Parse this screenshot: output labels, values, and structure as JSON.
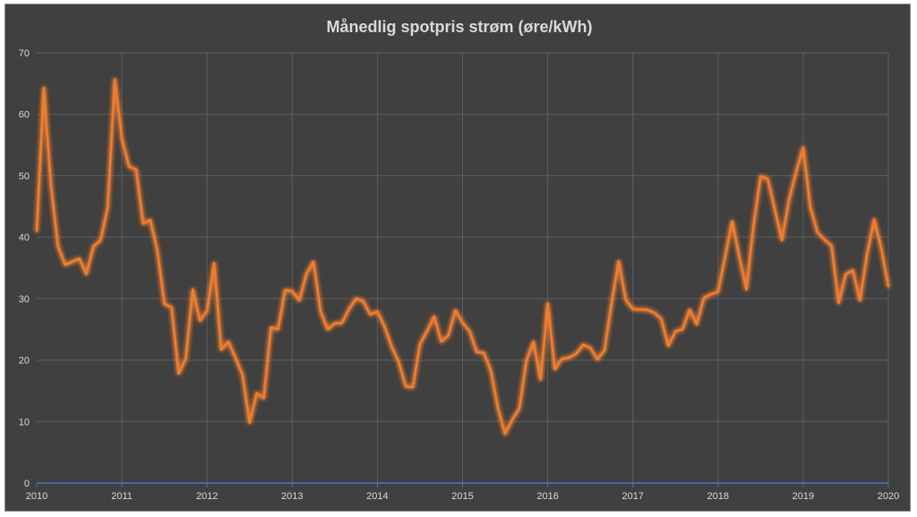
{
  "chart_data": {
    "type": "line",
    "title": "Månedlig spotpris strøm (øre/kWh)",
    "xlabel": "",
    "ylabel": "",
    "xlim": [
      2010,
      2020
    ],
    "ylim": [
      0,
      70
    ],
    "x_ticks": [
      "2010",
      "2011",
      "2012",
      "2013",
      "2014",
      "2015",
      "2016",
      "2017",
      "2018",
      "2019",
      "2020"
    ],
    "y_ticks": [
      "0",
      "10",
      "20",
      "30",
      "40",
      "50",
      "60",
      "70"
    ],
    "grid": true,
    "legend": "none",
    "line_color": "#ed7d31",
    "axis_color": "#4472c4",
    "series": [
      {
        "values": [
          41,
          64.3,
          48.5,
          38.5,
          35.5,
          36,
          36.5,
          34,
          38.5,
          39.5,
          44.8,
          65.7,
          56,
          51.5,
          51,
          42.2,
          42.8,
          37.8,
          29.1,
          28.6,
          17.8,
          20.2,
          31.5,
          26.4,
          28,
          35.8,
          21.7,
          23,
          20.4,
          17.6,
          9.8,
          14.6,
          13.8,
          25.3,
          25,
          31.4,
          31.2,
          29.7,
          34,
          36,
          27.9,
          25,
          26,
          26,
          28.3,
          30,
          29.6,
          27.4,
          27.9,
          25.5,
          22.2,
          19.7,
          15.7,
          15.6,
          22.6,
          24.7,
          27.1,
          23,
          24,
          28.1,
          26.1,
          24.7,
          21.3,
          21.2,
          18.2,
          12.1,
          8,
          10.3,
          12.1,
          19.9,
          23,
          16.8,
          29.2,
          18.5,
          20.2,
          20.4,
          21,
          22.5,
          22,
          20.1,
          21.6,
          29.2,
          36.1,
          29.8,
          28.3,
          28.2,
          28.2,
          27.7,
          26.7,
          22.3,
          24.7,
          25,
          28.2,
          25.8,
          30.1,
          30.7,
          31.1,
          36.8,
          42.6,
          36.8,
          31.5,
          41.9,
          49.9,
          49.5,
          44.5,
          39.5,
          46,
          50.6,
          54.6,
          44.9,
          40.8,
          39.6,
          38.6,
          29.3,
          34,
          34.6,
          29.7,
          37.2,
          42.9,
          38.2,
          32
        ]
      }
    ]
  }
}
